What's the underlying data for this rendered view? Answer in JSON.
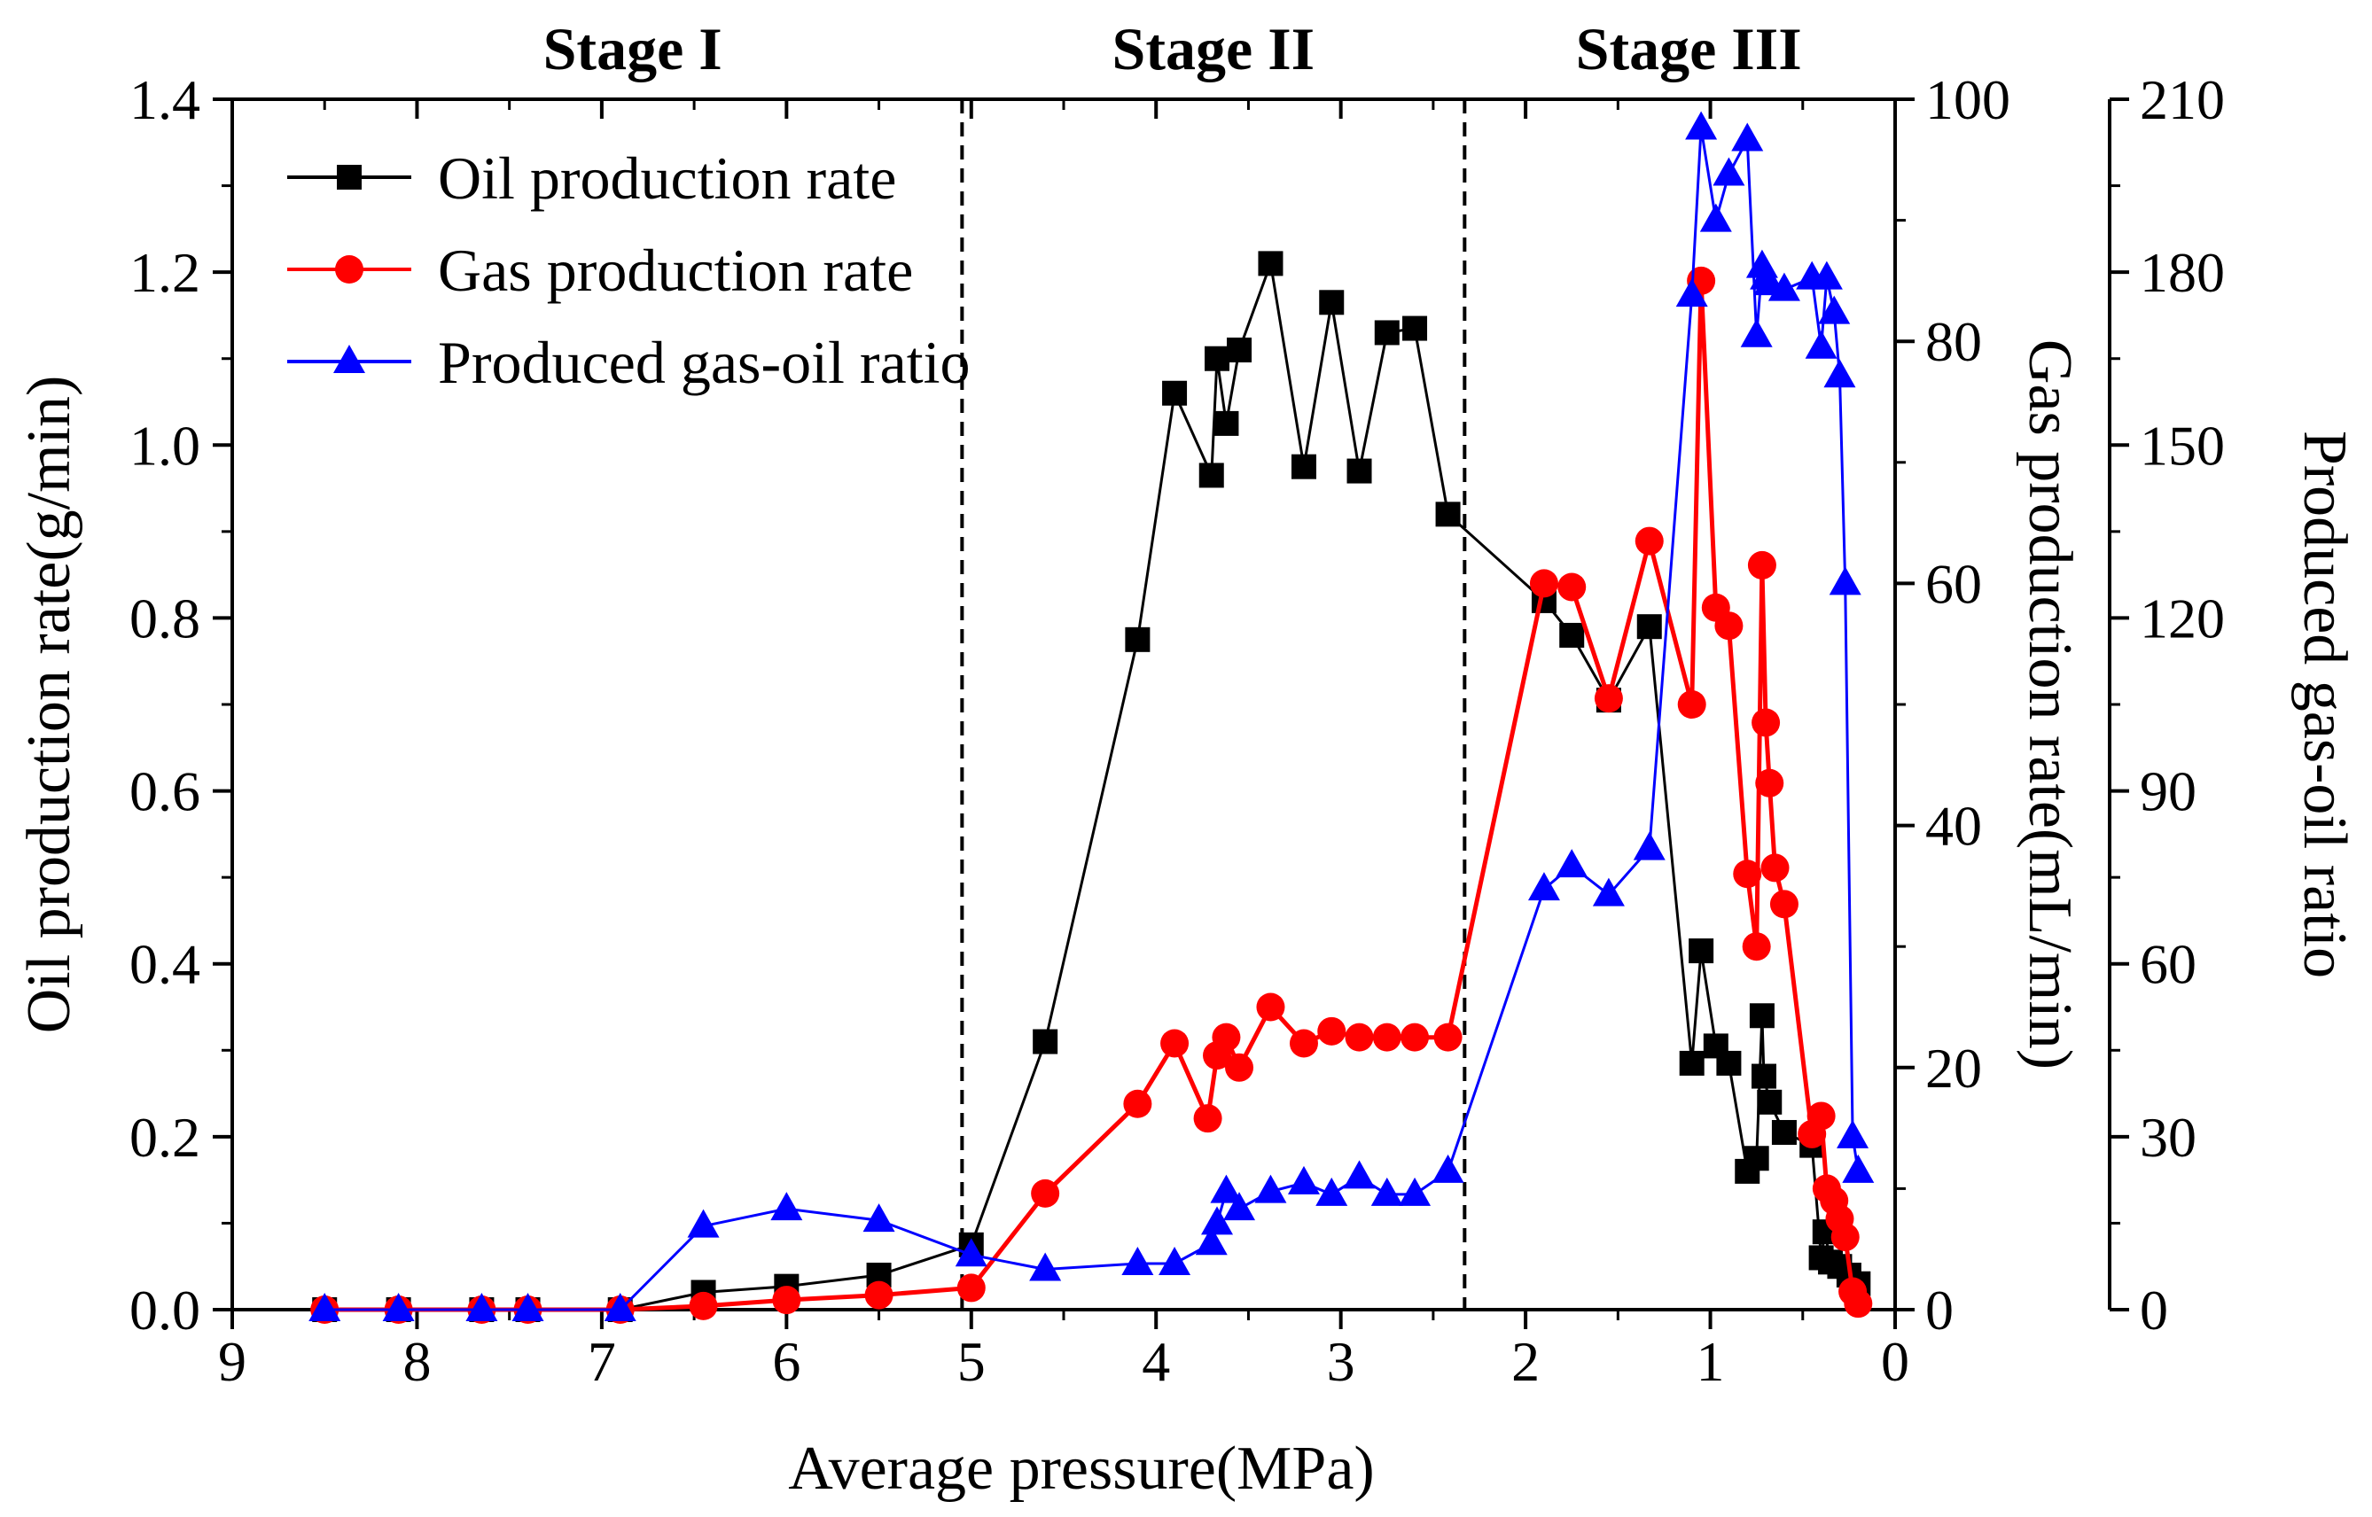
{
  "chart_data": {
    "type": "line",
    "title": "",
    "xlabel": "Average pressure(MPa)",
    "ylabel_left": "Oil production rate(g/min)",
    "ylabel_right1": "Gas production rate(mL/min)",
    "ylabel_right2": "Produced gas-oil ratio",
    "xlim": [
      9,
      0
    ],
    "x_reversed": true,
    "ylim_left": [
      0,
      1.4
    ],
    "ylim_right1": [
      0,
      100
    ],
    "ylim_right2": [
      0,
      210
    ],
    "x_ticks": [
      "9",
      "8",
      "7",
      "6",
      "5",
      "4",
      "3",
      "2",
      "1",
      "0"
    ],
    "y_left_ticks": [
      "0.0",
      "0.2",
      "0.4",
      "0.6",
      "0.8",
      "1.0",
      "1.2",
      "1.4"
    ],
    "y_right1_ticks": [
      "0",
      "20",
      "40",
      "60",
      "80",
      "100"
    ],
    "y_right2_ticks": [
      "0",
      "30",
      "60",
      "90",
      "120",
      "150",
      "180",
      "210"
    ],
    "stage_labels": [
      "Stage I",
      "Stage II",
      "Stage III"
    ],
    "stage_boundaries": [
      5.05,
      2.33
    ],
    "legend_position": "top-left",
    "series": [
      {
        "name": "Oil production rate",
        "axis": "left",
        "color": "#000000",
        "marker": "square",
        "x": [
          8.5,
          8.1,
          7.65,
          7.4,
          6.9,
          6.45,
          6.0,
          5.5,
          5.0,
          4.6,
          4.1,
          3.9,
          3.7,
          3.67,
          3.62,
          3.55,
          3.38,
          3.2,
          3.05,
          2.9,
          2.75,
          2.6,
          2.42,
          1.9,
          1.75,
          1.55,
          1.33,
          1.1,
          1.05,
          0.97,
          0.9,
          0.8,
          0.75,
          0.72,
          0.71,
          0.68,
          0.6,
          0.45,
          0.4,
          0.38,
          0.35,
          0.3,
          0.25,
          0.2
        ],
        "y": [
          0.0,
          0.0,
          0.0,
          0.0,
          0.0,
          0.02,
          0.027,
          0.04,
          0.075,
          0.31,
          0.775,
          1.06,
          0.965,
          1.1,
          1.025,
          1.11,
          1.21,
          0.975,
          1.165,
          0.97,
          1.13,
          1.135,
          0.92,
          0.82,
          0.78,
          0.705,
          0.79,
          0.285,
          0.415,
          0.305,
          0.285,
          0.16,
          0.175,
          0.34,
          0.27,
          0.24,
          0.205,
          0.19,
          0.06,
          0.09,
          0.055,
          0.05,
          0.04,
          0.03
        ]
      },
      {
        "name": "Gas production rate",
        "axis": "right1",
        "color": "#ff0000",
        "marker": "circle",
        "x": [
          8.5,
          8.1,
          7.65,
          7.4,
          6.9,
          6.45,
          6.0,
          5.5,
          5.0,
          4.6,
          4.1,
          3.9,
          3.72,
          3.67,
          3.62,
          3.55,
          3.38,
          3.2,
          3.05,
          2.9,
          2.75,
          2.6,
          2.42,
          1.9,
          1.75,
          1.55,
          1.33,
          1.1,
          1.05,
          0.97,
          0.9,
          0.8,
          0.75,
          0.72,
          0.7,
          0.68,
          0.65,
          0.6,
          0.45,
          0.4,
          0.37,
          0.33,
          0.3,
          0.27,
          0.23,
          0.2
        ],
        "y": [
          0,
          0,
          0,
          0,
          0,
          0.3,
          0.8,
          1.2,
          1.8,
          9.6,
          17,
          22,
          15.8,
          21,
          22.5,
          20,
          25,
          22,
          23,
          22.5,
          22.5,
          22.5,
          22.5,
          60,
          59.7,
          50.5,
          63.5,
          50,
          85,
          58,
          56.5,
          36,
          30,
          61.5,
          48.5,
          43.5,
          36.5,
          33.5,
          14.5,
          16,
          10,
          9,
          7.5,
          6,
          1.5,
          0.5
        ]
      },
      {
        "name": "Produced gas-oil ratio",
        "axis": "right2",
        "color": "#0000ff",
        "marker": "triangle",
        "x": [
          8.5,
          8.1,
          7.65,
          7.4,
          6.9,
          6.45,
          6.0,
          5.5,
          5.0,
          4.6,
          4.1,
          3.9,
          3.7,
          3.67,
          3.62,
          3.55,
          3.38,
          3.2,
          3.05,
          2.9,
          2.75,
          2.6,
          2.42,
          1.9,
          1.75,
          1.55,
          1.33,
          1.1,
          1.05,
          0.97,
          0.9,
          0.8,
          0.75,
          0.72,
          0.7,
          0.68,
          0.6,
          0.45,
          0.4,
          0.37,
          0.33,
          0.3,
          0.27,
          0.23,
          0.2
        ],
        "y": [
          0,
          0,
          0,
          0,
          0,
          14.5,
          17.5,
          15.5,
          9.5,
          7,
          8,
          8,
          11.5,
          15,
          20.5,
          17.5,
          20.5,
          22,
          20,
          23,
          20,
          20,
          24,
          73,
          77,
          72,
          80,
          176,
          205,
          189,
          197,
          203,
          169,
          181,
          179,
          178,
          177,
          179,
          167,
          179,
          173,
          162,
          126,
          30,
          24
        ]
      }
    ]
  }
}
